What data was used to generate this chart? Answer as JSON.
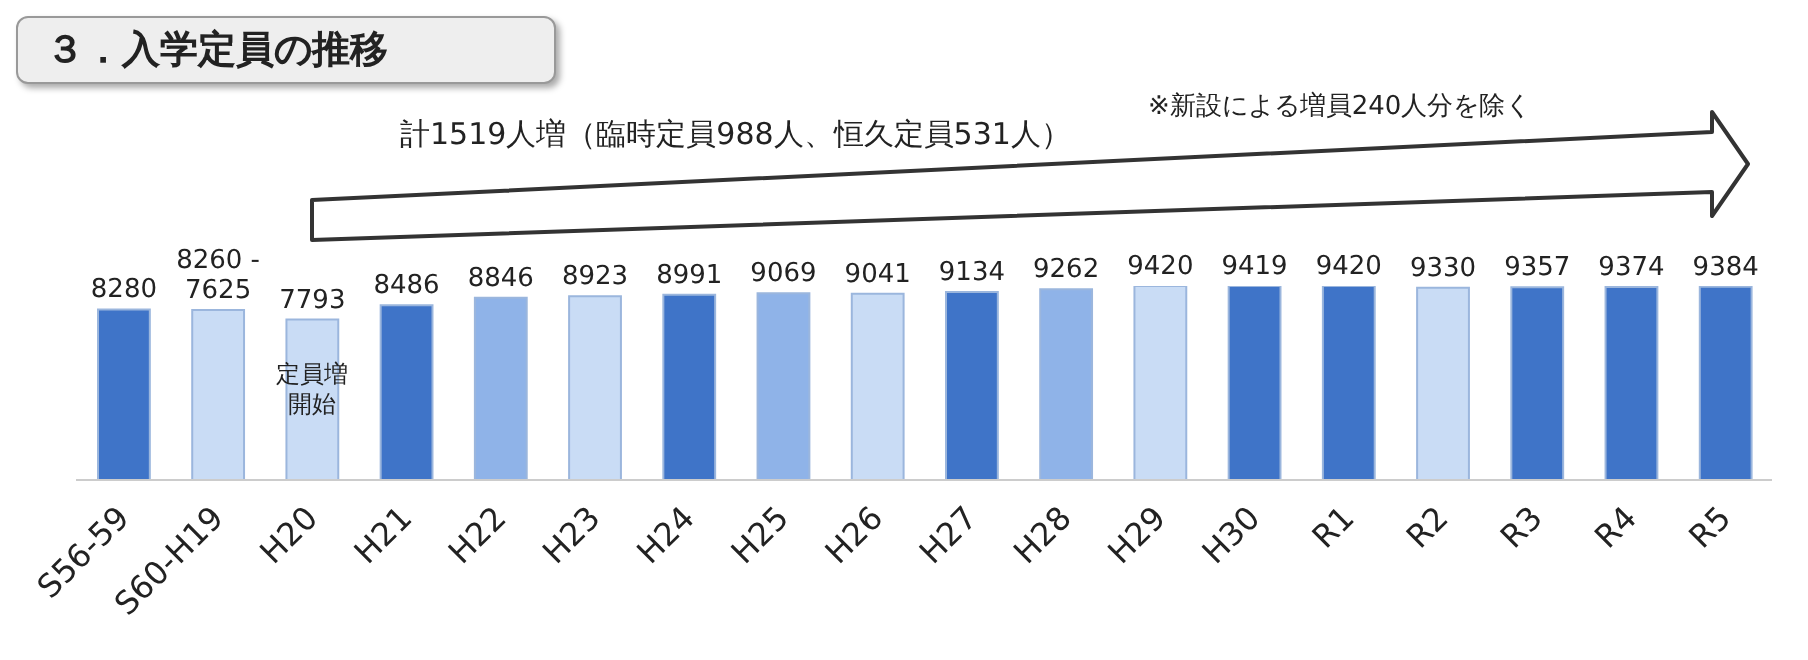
{
  "chart_data": {
    "type": "bar",
    "title": "３．入学定員の推移",
    "categories": [
      "S56-59",
      "S60-H19",
      "H20",
      "H21",
      "H22",
      "H23",
      "H24",
      "H25",
      "H26",
      "H27",
      "H28",
      "H29",
      "H30",
      "R1",
      "R2",
      "R3",
      "R4",
      "R5"
    ],
    "values": [
      8280,
      8260,
      7793,
      8486,
      8846,
      8923,
      8991,
      9069,
      9041,
      9134,
      9262,
      9420,
      9419,
      9420,
      9330,
      9357,
      9374,
      9384
    ],
    "value_labels": [
      "8280",
      "8260 -\n7625",
      "7793",
      "8486",
      "8846",
      "8923",
      "8991",
      "9069",
      "9041",
      "9134",
      "9262",
      "9420",
      "9419",
      "9420",
      "9330",
      "9357",
      "9374",
      "9384"
    ],
    "colors": [
      "#3f74c8",
      "#c9dcf5",
      "#c9dcf5",
      "#3f74c8",
      "#8fb3e8",
      "#c9dcf5",
      "#3f74c8",
      "#8fb3e8",
      "#c9dcf5",
      "#3f74c8",
      "#8fb3e8",
      "#c9dcf5",
      "#3f74c8",
      "#3f74c8",
      "#c9dcf5",
      "#3f74c8",
      "#3f74c8",
      "#3f74c8"
    ],
    "annotations": [
      "計1519人増（臨時定員988人、恒久定員531人）",
      "※新設による増員240人分を除く",
      {
        "text": "定員増開始",
        "x": "H20"
      }
    ],
    "legend": false,
    "grid": false
  }
}
